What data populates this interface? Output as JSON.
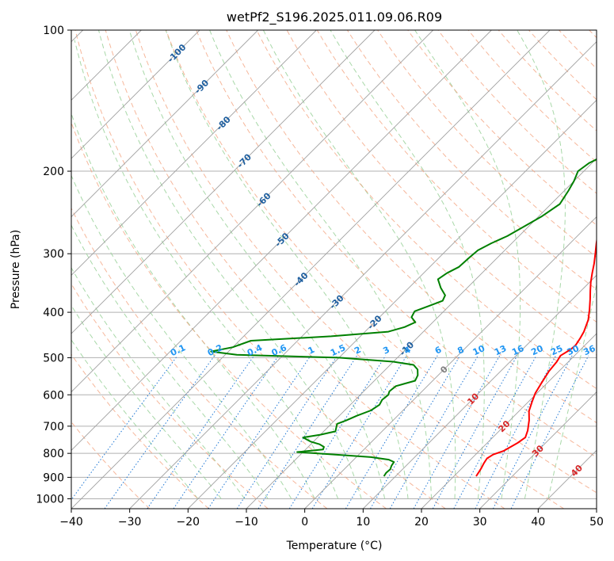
{
  "chart_data": {
    "type": "line",
    "subtype": "skew-T log-P diagram",
    "title": "wetPf2_S196.2025.011.09.06.R09",
    "xlabel": "Temperature (°C)",
    "ylabel": "Pressure (hPa)",
    "xlim": [
      -40,
      50
    ],
    "ylim": [
      1050,
      100
    ],
    "y_scale": "log",
    "x_ticks": [
      -40,
      -30,
      -20,
      -10,
      0,
      10,
      20,
      30,
      40,
      50
    ],
    "x_tick_labels": [
      "−40",
      "−30",
      "−20",
      "−10",
      "0",
      "10",
      "20",
      "30",
      "40",
      "50"
    ],
    "y_ticks": [
      1000,
      900,
      800,
      700,
      600,
      500,
      400,
      300,
      200,
      100
    ],
    "y_tick_labels": [
      "1000",
      "900",
      "800",
      "700",
      "600",
      "500",
      "400",
      "300",
      "200",
      "100"
    ],
    "grid": true,
    "colors": {
      "temperature": "#ff0000",
      "dewpoint": "#008000",
      "isotherm": "#a0a0a0",
      "dry_adiabat": "#f4a582",
      "moist_adiabat": "#9fd49f",
      "mixing_ratio": "#1f77d4",
      "dry_adiabat_label": "#d62728",
      "isotherm_label": "#1f5f9f",
      "mixing_label": "#2196f3",
      "zero_label": "#808080"
    },
    "series": [
      {
        "key": "temperature",
        "points": [
          [
            23.8,
            895
          ],
          [
            23.6,
            880
          ],
          [
            23.3,
            860
          ],
          [
            22.9,
            840
          ],
          [
            22.6,
            820
          ],
          [
            23.0,
            805
          ],
          [
            24.2,
            790
          ],
          [
            25.2,
            760
          ],
          [
            25.6,
            740
          ],
          [
            24.8,
            715
          ],
          [
            23.3,
            680
          ],
          [
            21.7,
            650
          ],
          [
            20.6,
            620
          ],
          [
            19.7,
            595
          ],
          [
            19.0,
            565
          ],
          [
            18.3,
            535
          ],
          [
            18.0,
            510
          ],
          [
            17.6,
            495
          ],
          [
            18.3,
            480
          ],
          [
            18.4,
            470
          ],
          [
            18.0,
            455
          ],
          [
            17.5,
            440
          ],
          [
            16.2,
            415
          ],
          [
            14.7,
            395
          ],
          [
            13.0,
            375
          ],
          [
            11.6,
            360
          ],
          [
            10.2,
            345
          ],
          [
            8.9,
            330
          ],
          [
            7.6,
            315
          ],
          [
            6.1,
            300
          ],
          [
            4.5,
            285
          ],
          [
            2.9,
            270
          ],
          [
            1.4,
            255
          ],
          [
            0.5,
            240
          ],
          [
            0.2,
            225
          ],
          [
            0.4,
            210
          ],
          [
            0.9,
            195
          ],
          [
            1.1,
            185
          ],
          [
            0.6,
            175
          ],
          [
            0.4,
            165
          ],
          [
            1.3,
            155
          ],
          [
            1.9,
            145
          ],
          [
            2.1,
            135
          ],
          [
            2.6,
            125
          ],
          [
            3.6,
            118
          ],
          [
            5.3,
            110
          ],
          [
            6.0,
            104
          ],
          [
            6.4,
            100
          ]
        ]
      },
      {
        "key": "dewpoint",
        "points": [
          [
            8.0,
            895
          ],
          [
            7.8,
            880
          ],
          [
            7.9,
            865
          ],
          [
            7.5,
            850
          ],
          [
            7.3,
            835
          ],
          [
            6.0,
            825
          ],
          [
            2.5,
            815
          ],
          [
            -4.0,
            805
          ],
          [
            -11.0,
            795
          ],
          [
            -7.0,
            785
          ],
          [
            -7.3,
            775
          ],
          [
            -8.5,
            765
          ],
          [
            -10.5,
            755
          ],
          [
            -12.5,
            740
          ],
          [
            -10.0,
            730
          ],
          [
            -8.0,
            718
          ],
          [
            -8.5,
            705
          ],
          [
            -9.0,
            692
          ],
          [
            -8.0,
            680
          ],
          [
            -7.0,
            665
          ],
          [
            -5.5,
            648
          ],
          [
            -5.0,
            630
          ],
          [
            -5.4,
            615
          ],
          [
            -5.2,
            600
          ],
          [
            -5.6,
            590
          ],
          [
            -5.4,
            575
          ],
          [
            -3.0,
            560
          ],
          [
            -3.5,
            545
          ],
          [
            -4.5,
            530
          ],
          [
            -6.0,
            518
          ],
          [
            -10.0,
            510
          ],
          [
            -20.0,
            500
          ],
          [
            -38.0,
            493
          ],
          [
            -43.0,
            485
          ],
          [
            -40.0,
            475
          ],
          [
            -38.0,
            460
          ],
          [
            -25.0,
            450
          ],
          [
            -16.0,
            440
          ],
          [
            -14.0,
            430
          ],
          [
            -13.0,
            420
          ],
          [
            -14.5,
            410
          ],
          [
            -15.0,
            398
          ],
          [
            -13.5,
            388
          ],
          [
            -12.0,
            378
          ],
          [
            -12.5,
            368
          ],
          [
            -14.5,
            355
          ],
          [
            -16.5,
            340
          ],
          [
            -16.0,
            330
          ],
          [
            -15.0,
            320
          ],
          [
            -14.8,
            305
          ],
          [
            -14.6,
            295
          ],
          [
            -13.5,
            285
          ],
          [
            -12.0,
            275
          ],
          [
            -11.0,
            265
          ],
          [
            -9.5,
            250
          ],
          [
            -8.5,
            235
          ],
          [
            -9.3,
            220
          ],
          [
            -10.0,
            210
          ],
          [
            -11.0,
            200
          ],
          [
            -10.5,
            192
          ],
          [
            -8.5,
            182
          ],
          [
            -7.5,
            172
          ],
          [
            -7.0,
            160
          ],
          [
            -7.0,
            150
          ],
          [
            -7.7,
            140
          ],
          [
            -7.5,
            130
          ],
          [
            -6.0,
            122
          ],
          [
            -4.5,
            115
          ],
          [
            -2.5,
            108
          ],
          [
            -1.0,
            100
          ]
        ]
      }
    ],
    "isotherm_labels": [
      "-100",
      "-90",
      "-80",
      "-70",
      "-60",
      "-50",
      "-40",
      "-30",
      "-20",
      "-10",
      "0",
      "10",
      "20",
      "30",
      "40"
    ],
    "mixing_ratio_labels": [
      "0.1",
      "0.2",
      "0.4",
      "0.6",
      "1",
      "1.5",
      "2",
      "3",
      "4",
      "6",
      "8",
      "10",
      "13",
      "16",
      "20",
      "25",
      "30",
      "36"
    ]
  }
}
